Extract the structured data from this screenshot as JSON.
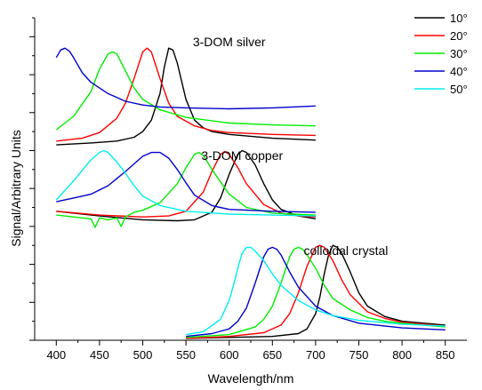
{
  "chart_data": {
    "type": "line",
    "xlabel": "Wavelength/nm",
    "ylabel": "Signal/Arbitrary Units",
    "xlim": [
      375,
      875
    ],
    "ylim": [
      0,
      34
    ],
    "x_ticks": [
      400,
      450,
      500,
      550,
      600,
      650,
      700,
      750,
      800,
      850
    ],
    "y_tick_labels": "none",
    "grid": false,
    "legend_position": "top-right",
    "legend": [
      {
        "label": "10°",
        "color": "#000000"
      },
      {
        "label": "20°",
        "color": "#ff0000"
      },
      {
        "label": "30°",
        "color": "#00ee00"
      },
      {
        "label": "40°",
        "color": "#0000cc"
      },
      {
        "label": "50°",
        "color": "#00eeee"
      }
    ],
    "annotations": [
      {
        "text": "3-DOM silver",
        "x": 600,
        "y": 31
      },
      {
        "text": "3-DOM copper",
        "x": 615,
        "y": 19
      },
      {
        "text": "colloidal crystal",
        "x": 735,
        "y": 9
      }
    ],
    "panels": [
      {
        "name": "3-DOM silver",
        "series": [
          {
            "legend": "10°",
            "color": "#000000",
            "x": [
              400,
              440,
              470,
              490,
              500,
              510,
              520,
              525,
              530,
              535,
              540,
              550,
              560,
              570,
              580,
              600,
              650,
              700
            ],
            "y": [
              20.6,
              20.8,
              21.0,
              21.4,
              22.0,
              23.2,
              26.0,
              28.8,
              30.8,
              30.6,
              29.2,
              25.4,
              23.2,
              22.4,
              22.0,
              21.7,
              21.3,
              21.1
            ]
          },
          {
            "legend": "20°",
            "color": "#ff0000",
            "x": [
              400,
              430,
              450,
              470,
              480,
              490,
              500,
              505,
              510,
              520,
              530,
              540,
              560,
              580,
              600,
              650,
              700
            ],
            "y": [
              21.0,
              21.3,
              21.9,
              23.4,
              25.0,
              27.6,
              30.4,
              30.8,
              30.4,
              27.6,
              25.0,
              23.6,
              22.6,
              22.1,
              21.9,
              21.7,
              21.6
            ]
          },
          {
            "legend": "30°",
            "color": "#00ee00",
            "x": [
              400,
              420,
              440,
              450,
              460,
              465,
              470,
              480,
              490,
              500,
              520,
              550,
              600,
              650,
              700
            ],
            "y": [
              22.2,
              23.6,
              26.2,
              28.6,
              30.2,
              30.4,
              30.2,
              28.4,
              26.6,
              25.4,
              24.3,
              23.5,
              22.9,
              22.7,
              22.6
            ]
          },
          {
            "legend": "40°",
            "color": "#0000cc",
            "x": [
              400,
              405,
              410,
              415,
              420,
              430,
              440,
              460,
              480,
              500,
              520,
              550,
              600,
              650,
              700
            ],
            "y": [
              29.8,
              30.6,
              30.8,
              30.5,
              29.8,
              28.2,
              27.2,
              26.0,
              25.2,
              24.8,
              24.6,
              24.5,
              24.4,
              24.5,
              24.7
            ]
          }
        ]
      },
      {
        "name": "3-DOM copper",
        "series": [
          {
            "legend": "10°",
            "color": "#000000",
            "x": [
              400,
              450,
              500,
              540,
              560,
              580,
              590,
              600,
              610,
              615,
              620,
              630,
              640,
              650,
              660,
              680,
              700
            ],
            "y": [
              13.6,
              13.1,
              12.7,
              12.6,
              12.7,
              13.5,
              15.0,
              17.5,
              19.6,
              20.0,
              19.8,
              18.5,
              16.5,
              14.8,
              13.8,
              13.1,
              12.8
            ]
          },
          {
            "legend": "20°",
            "color": "#ff0000",
            "x": [
              400,
              450,
              500,
              530,
              550,
              570,
              580,
              590,
              595,
              600,
              610,
              620,
              640,
              660,
              680,
              700
            ],
            "y": [
              13.6,
              13.2,
              13.0,
              13.1,
              13.6,
              15.6,
              17.8,
              19.6,
              19.9,
              19.6,
              18.2,
              16.5,
              14.3,
              13.4,
              13.1,
              13.0
            ]
          },
          {
            "legend": "30°",
            "color": "#00ee00",
            "x": [
              400,
              420,
              440,
              445,
              450,
              460,
              470,
              475,
              480,
              490,
              500,
              520,
              540,
              550,
              560,
              565,
              570,
              580,
              600,
              620,
              650,
              700
            ],
            "y": [
              13.2,
              13.0,
              12.8,
              11.9,
              12.9,
              12.7,
              12.9,
              12.0,
              13.0,
              13.5,
              13.7,
              14.5,
              16.5,
              18.2,
              19.6,
              19.8,
              19.5,
              18.0,
              15.4,
              14.0,
              13.4,
              13.2
            ]
          },
          {
            "legend": "40°",
            "color": "#0000cc",
            "x": [
              400,
              420,
              440,
              460,
              480,
              500,
              510,
              520,
              530,
              540,
              550,
              560,
              580,
              600,
              650,
              700
            ],
            "y": [
              14.6,
              15.0,
              15.4,
              16.3,
              17.8,
              19.4,
              19.8,
              19.8,
              19.2,
              18.0,
              16.6,
              15.3,
              14.2,
              13.8,
              13.6,
              13.5
            ]
          },
          {
            "legend": "50°",
            "color": "#00eeee",
            "x": [
              400,
              420,
              440,
              450,
              455,
              460,
              470,
              480,
              490,
              500,
              520,
              550,
              600,
              650,
              700
            ],
            "y": [
              14.8,
              16.8,
              19.0,
              19.8,
              20.0,
              19.8,
              18.8,
              17.6,
              16.3,
              15.2,
              14.2,
              13.6,
              13.3,
              13.2,
              13.1
            ]
          }
        ]
      },
      {
        "name": "colloidal crystal",
        "series": [
          {
            "legend": "10°",
            "color": "#000000",
            "x": [
              550,
              600,
              650,
              680,
              690,
              700,
              705,
              710,
              715,
              720,
              725,
              730,
              740,
              750,
              760,
              780,
              800,
              850
            ],
            "y": [
              0.2,
              0.3,
              0.4,
              0.7,
              1.2,
              2.8,
              4.6,
              7.0,
              9.0,
              10.0,
              9.8,
              9.2,
              7.2,
              5.0,
              3.6,
              2.5,
              2.0,
              1.6
            ]
          },
          {
            "legend": "20°",
            "color": "#ff0000",
            "x": [
              550,
              600,
              640,
              660,
              670,
              680,
              690,
              700,
              705,
              710,
              720,
              730,
              740,
              760,
              780,
              800,
              850
            ],
            "y": [
              0.2,
              0.4,
              0.8,
              1.6,
              2.8,
              5.0,
              7.8,
              9.8,
              10.0,
              9.8,
              8.4,
              6.4,
              4.8,
              3.0,
              2.3,
              1.9,
              1.5
            ]
          },
          {
            "legend": "30°",
            "color": "#00ee00",
            "x": [
              550,
              600,
              630,
              640,
              650,
              660,
              670,
              675,
              680,
              685,
              690,
              700,
              710,
              720,
              740,
              760,
              780,
              800,
              850
            ],
            "y": [
              0.3,
              0.6,
              1.4,
              2.2,
              3.6,
              6.0,
              8.8,
              9.6,
              9.8,
              9.6,
              9.0,
              7.6,
              5.8,
              4.4,
              3.2,
              2.4,
              2.0,
              1.8,
              1.4
            ]
          },
          {
            "legend": "40°",
            "color": "#0000cc",
            "x": [
              550,
              580,
              600,
              610,
              620,
              630,
              640,
              645,
              650,
              655,
              660,
              670,
              680,
              700,
              720,
              750,
              800,
              850
            ],
            "y": [
              0.4,
              0.7,
              1.2,
              2.0,
              3.4,
              6.0,
              8.8,
              9.6,
              9.8,
              9.6,
              9.0,
              7.2,
              5.6,
              3.6,
              2.6,
              1.8,
              1.3,
              1.1
            ]
          },
          {
            "legend": "50°",
            "color": "#00eeee",
            "x": [
              550,
              570,
              590,
              600,
              605,
              610,
              615,
              620,
              625,
              630,
              640,
              650,
              660,
              680,
              700,
              720,
              750,
              800,
              850
            ],
            "y": [
              0.6,
              0.9,
              2.2,
              4.2,
              5.8,
              7.6,
              9.2,
              9.8,
              9.8,
              9.4,
              8.4,
              7.0,
              5.8,
              4.2,
              3.2,
              2.6,
              2.1,
              1.7,
              1.5
            ]
          }
        ]
      }
    ]
  }
}
